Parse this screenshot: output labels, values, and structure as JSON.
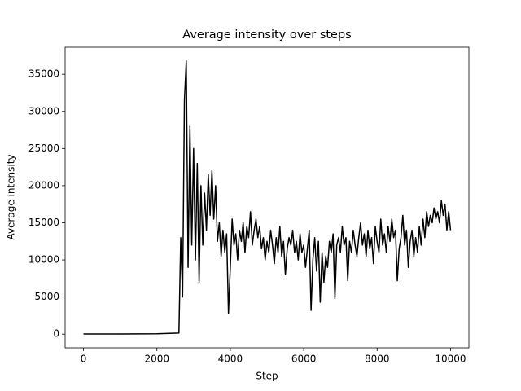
{
  "chart_data": {
    "type": "line",
    "title": "Average intensity over steps",
    "xlabel": "Step",
    "ylabel": "Average intensity",
    "color": "#000000",
    "x": [
      0,
      1000,
      2000,
      2600,
      2650,
      2700,
      2750,
      2800,
      2850,
      2900,
      2950,
      3000,
      3050,
      3100,
      3150,
      3200,
      3250,
      3300,
      3350,
      3400,
      3450,
      3500,
      3550,
      3600,
      3650,
      3700,
      3750,
      3800,
      3850,
      3900,
      3950,
      4000,
      4050,
      4100,
      4150,
      4200,
      4250,
      4300,
      4350,
      4400,
      4450,
      4500,
      4550,
      4600,
      4650,
      4700,
      4750,
      4800,
      4850,
      4900,
      4950,
      5000,
      5050,
      5100,
      5150,
      5200,
      5250,
      5300,
      5350,
      5400,
      5450,
      5500,
      5550,
      5600,
      5650,
      5700,
      5750,
      5800,
      5850,
      5900,
      5950,
      6000,
      6050,
      6100,
      6150,
      6200,
      6250,
      6300,
      6350,
      6400,
      6450,
      6500,
      6550,
      6600,
      6650,
      6700,
      6750,
      6800,
      6850,
      6900,
      6950,
      7000,
      7050,
      7100,
      7150,
      7200,
      7250,
      7300,
      7350,
      7400,
      7450,
      7500,
      7550,
      7600,
      7650,
      7700,
      7750,
      7800,
      7850,
      7900,
      7950,
      8000,
      8050,
      8100,
      8150,
      8200,
      8250,
      8300,
      8350,
      8400,
      8450,
      8500,
      8550,
      8600,
      8650,
      8700,
      8750,
      8800,
      8850,
      8900,
      8950,
      9000,
      9050,
      9100,
      9150,
      9200,
      9250,
      9300,
      9350,
      9400,
      9450,
      9500,
      9550,
      9600,
      9650,
      9700,
      9750,
      9800,
      9850,
      9900,
      9950,
      10000
    ],
    "values": [
      30,
      30,
      50,
      150,
      13000,
      5000,
      31500,
      36800,
      9000,
      28000,
      12000,
      25000,
      10000,
      23000,
      7000,
      20000,
      12000,
      19000,
      14000,
      21500,
      16000,
      22000,
      15500,
      20000,
      12500,
      15000,
      10500,
      14000,
      11000,
      13500,
      2800,
      9000,
      15500,
      12000,
      13500,
      10000,
      14000,
      12500,
      15000,
      11000,
      14500,
      13000,
      16500,
      12000,
      14000,
      15500,
      13000,
      14500,
      11500,
      13000,
      10000,
      12500,
      11000,
      14000,
      12000,
      9500,
      13000,
      11000,
      14500,
      10500,
      12500,
      8000,
      11500,
      13000,
      12000,
      14000,
      11000,
      12500,
      10000,
      13500,
      11000,
      12000,
      9000,
      11500,
      14000,
      3200,
      10000,
      13000,
      8500,
      12500,
      4300,
      11000,
      7000,
      10500,
      9000,
      12500,
      11000,
      13500,
      4800,
      12000,
      13000,
      11000,
      14500,
      12000,
      13000,
      7200,
      12500,
      11000,
      14000,
      12000,
      10500,
      13000,
      15000,
      12000,
      13500,
      10500,
      14000,
      11500,
      13000,
      9500,
      14500,
      12500,
      11000,
      15500,
      12000,
      13500,
      11000,
      14500,
      12500,
      15500,
      13000,
      14000,
      7200,
      11500,
      13000,
      16000,
      12000,
      14000,
      9000,
      12500,
      14000,
      10500,
      13000,
      11000,
      14500,
      12000,
      15500,
      13000,
      16500,
      14500,
      16000,
      15000,
      17000,
      15500,
      16500,
      15000,
      18000,
      16000,
      17500,
      14000,
      16500,
      14000
    ],
    "xlim": [
      -500,
      10500
    ],
    "ylim": [
      -1840,
      38640
    ],
    "xticks": [
      0,
      2000,
      4000,
      6000,
      8000,
      10000
    ],
    "yticks": [
      0,
      5000,
      10000,
      15000,
      20000,
      25000,
      30000,
      35000
    ]
  }
}
